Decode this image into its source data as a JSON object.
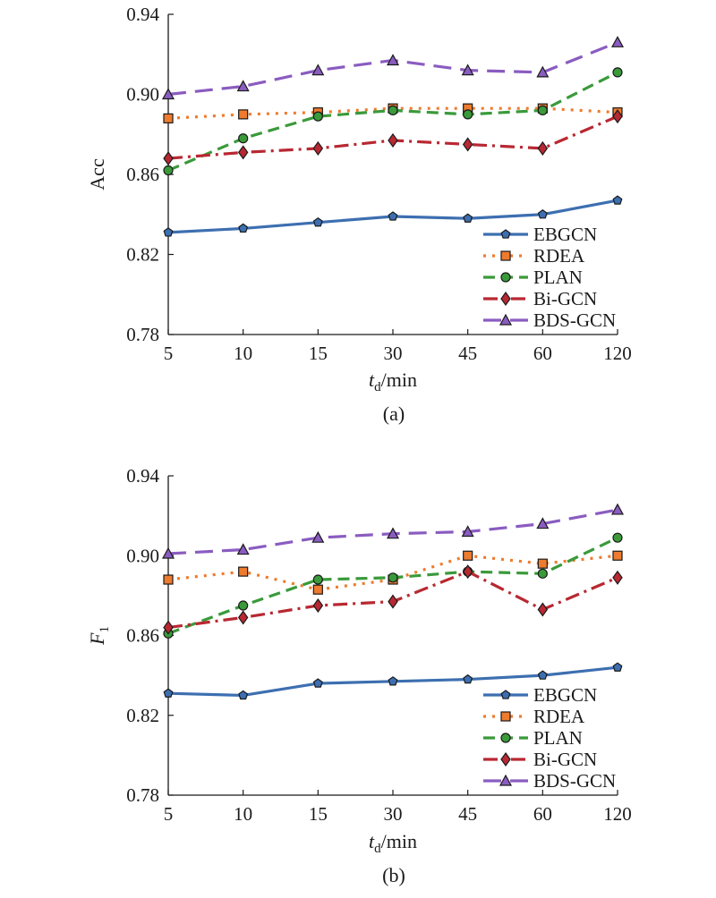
{
  "colors": {
    "EBGCN": "#3d6fb0",
    "RDEA": "#ee7b2e",
    "PLAN": "#3a9a3a",
    "Bi-GCN": "#b82832",
    "BDS-GCN": "#8a5cc0"
  },
  "chart_data": [
    {
      "type": "line",
      "caption": "(a)",
      "xlabel": {
        "main": "t",
        "sub": "d",
        "rest": "/min"
      },
      "ylabel": {
        "main": "Acc",
        "sub": ""
      },
      "categories": [
        "5",
        "10",
        "15",
        "30",
        "45",
        "60",
        "120"
      ],
      "ylim": [
        0.78,
        0.94
      ],
      "yticks": [
        "0.78",
        "0.82",
        "0.86",
        "0.90",
        "0.94"
      ],
      "legend_position": "lower-right",
      "series": [
        {
          "name": "EBGCN",
          "marker": "pentagon",
          "dash": "solid",
          "values": [
            0.831,
            0.833,
            0.836,
            0.839,
            0.838,
            0.84,
            0.847
          ]
        },
        {
          "name": "RDEA",
          "marker": "square",
          "dash": "dotted",
          "values": [
            0.888,
            0.89,
            0.891,
            0.893,
            0.893,
            0.893,
            0.891
          ]
        },
        {
          "name": "PLAN",
          "marker": "circle",
          "dash": "dashed",
          "values": [
            0.862,
            0.878,
            0.889,
            0.892,
            0.89,
            0.892,
            0.911
          ]
        },
        {
          "name": "Bi-GCN",
          "marker": "diamond",
          "dash": "dashdot",
          "values": [
            0.868,
            0.871,
            0.873,
            0.877,
            0.875,
            0.873,
            0.889
          ]
        },
        {
          "name": "BDS-GCN",
          "marker": "triangle",
          "dash": "longdash",
          "values": [
            0.9,
            0.904,
            0.912,
            0.917,
            0.912,
            0.911,
            0.926
          ]
        }
      ]
    },
    {
      "type": "line",
      "caption": "(b)",
      "xlabel": {
        "main": "t",
        "sub": "d",
        "rest": "/min"
      },
      "ylabel": {
        "main": "F",
        "sub": "1"
      },
      "categories": [
        "5",
        "10",
        "15",
        "30",
        "45",
        "60",
        "120"
      ],
      "ylim": [
        0.78,
        0.94
      ],
      "yticks": [
        "0.78",
        "0.82",
        "0.86",
        "0.90",
        "0.94"
      ],
      "legend_position": "lower-right",
      "series": [
        {
          "name": "EBGCN",
          "marker": "pentagon",
          "dash": "solid",
          "values": [
            0.831,
            0.83,
            0.836,
            0.837,
            0.838,
            0.84,
            0.844
          ]
        },
        {
          "name": "RDEA",
          "marker": "square",
          "dash": "dotted",
          "values": [
            0.888,
            0.892,
            0.883,
            0.888,
            0.9,
            0.896,
            0.9
          ]
        },
        {
          "name": "PLAN",
          "marker": "circle",
          "dash": "dashed",
          "values": [
            0.861,
            0.875,
            0.888,
            0.889,
            0.892,
            0.891,
            0.909
          ]
        },
        {
          "name": "Bi-GCN",
          "marker": "diamond",
          "dash": "dashdot",
          "values": [
            0.864,
            0.869,
            0.875,
            0.877,
            0.892,
            0.873,
            0.889
          ]
        },
        {
          "name": "BDS-GCN",
          "marker": "triangle",
          "dash": "longdash",
          "values": [
            0.901,
            0.903,
            0.909,
            0.911,
            0.912,
            0.916,
            0.923
          ]
        }
      ]
    }
  ]
}
